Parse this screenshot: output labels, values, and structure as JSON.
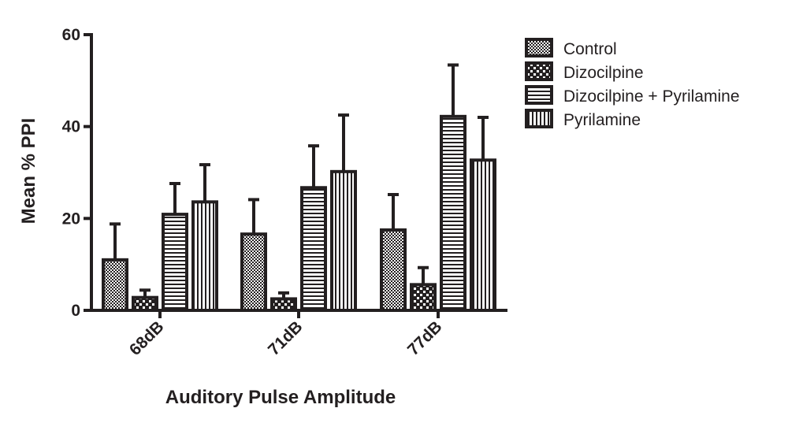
{
  "chart_data": {
    "type": "bar",
    "title": "",
    "xlabel": "Auditory Pulse Amplitude",
    "ylabel": "Mean % PPI",
    "ylim": [
      0,
      60
    ],
    "yticks": [
      "0",
      "20",
      "40",
      "60"
    ],
    "categories": [
      "68dB",
      "71dB",
      "77dB"
    ],
    "series": [
      {
        "name": "Control",
        "pattern": "checker",
        "values": [
          11.0,
          16.6,
          17.5
        ],
        "errors": [
          7.8,
          7.5,
          7.7
        ]
      },
      {
        "name": "Dizocilpine",
        "pattern": "dots",
        "values": [
          2.8,
          2.5,
          5.6
        ],
        "errors": [
          1.6,
          1.3,
          3.7
        ]
      },
      {
        "name": "Dizocilpine + Pyrilamine",
        "pattern": "horizontal-stripes",
        "values": [
          20.9,
          26.7,
          42.2
        ],
        "errors": [
          6.7,
          9.1,
          11.2
        ]
      },
      {
        "name": "Pyrilamine",
        "pattern": "vertical-stripes",
        "values": [
          23.6,
          30.2,
          32.7
        ],
        "errors": [
          8.1,
          12.3,
          9.3
        ]
      }
    ],
    "legend_position": "top-right",
    "grid": false,
    "colors": {
      "ink": "#231f20",
      "background": "#ffffff"
    }
  }
}
